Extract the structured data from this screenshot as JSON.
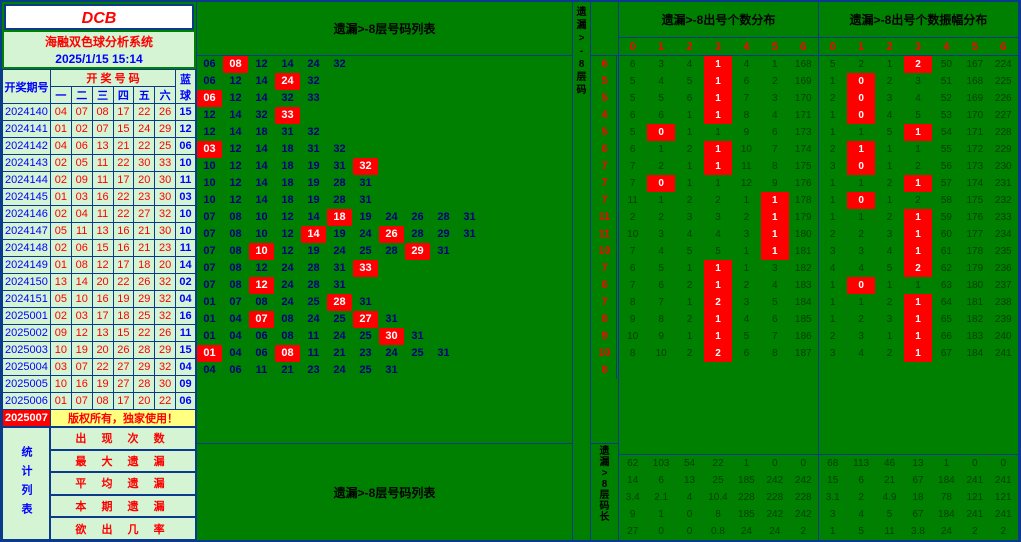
{
  "logo": "DCB",
  "subtitle": "海融双色球分析系统",
  "datetime": "2025/1/15 15:14",
  "hdr": {
    "period": "开奖期号",
    "nums": "开 奖 号 码",
    "blue": "蓝球",
    "n": [
      "一",
      "二",
      "三",
      "四",
      "五",
      "六"
    ]
  },
  "copyright": "版权所有，独家使用！",
  "stats_label": "统计列表",
  "stats_rows": [
    "出 现 次 数",
    "最 大 遗 漏",
    "平 均 遗 漏",
    "本 期 遗 漏",
    "欲 出 几 率"
  ],
  "mid_title": "遗漏>-8层号码列表",
  "mid_bottom": "遗漏>-8层号码列表",
  "v1": "遗漏>-8层码",
  "v2": "遗漏>8层码长",
  "p1_title": "遗漏>-8出号个数分布",
  "p2_title": "遗漏>-8出号个数振幅分布",
  "panel_hdr": [
    "0",
    "1",
    "2",
    "3",
    "4",
    "5",
    "6"
  ],
  "rows": [
    {
      "p": "2024140",
      "r": [
        "04",
        "07",
        "08",
        "17",
        "22",
        "26"
      ],
      "b": "15"
    },
    {
      "p": "2024141",
      "r": [
        "01",
        "02",
        "07",
        "15",
        "24",
        "29"
      ],
      "b": "12"
    },
    {
      "p": "2024142",
      "r": [
        "04",
        "06",
        "13",
        "21",
        "22",
        "25"
      ],
      "b": "06"
    },
    {
      "p": "2024143",
      "r": [
        "02",
        "05",
        "11",
        "22",
        "30",
        "33"
      ],
      "b": "10"
    },
    {
      "p": "2024144",
      "r": [
        "02",
        "09",
        "11",
        "17",
        "20",
        "30"
      ],
      "b": "11"
    },
    {
      "p": "2024145",
      "r": [
        "01",
        "03",
        "16",
        "22",
        "23",
        "30"
      ],
      "b": "03"
    },
    {
      "p": "2024146",
      "r": [
        "02",
        "04",
        "11",
        "22",
        "27",
        "32"
      ],
      "b": "10"
    },
    {
      "p": "2024147",
      "r": [
        "05",
        "11",
        "13",
        "16",
        "21",
        "30"
      ],
      "b": "10"
    },
    {
      "p": "2024148",
      "r": [
        "02",
        "06",
        "15",
        "16",
        "21",
        "23"
      ],
      "b": "11"
    },
    {
      "p": "2024149",
      "r": [
        "01",
        "08",
        "12",
        "17",
        "18",
        "20"
      ],
      "b": "14"
    },
    {
      "p": "2024150",
      "r": [
        "13",
        "14",
        "20",
        "22",
        "26",
        "32"
      ],
      "b": "02"
    },
    {
      "p": "2024151",
      "r": [
        "05",
        "10",
        "16",
        "19",
        "29",
        "32"
      ],
      "b": "04"
    },
    {
      "p": "2025001",
      "r": [
        "02",
        "03",
        "17",
        "18",
        "25",
        "32"
      ],
      "b": "16"
    },
    {
      "p": "2025002",
      "r": [
        "09",
        "12",
        "13",
        "15",
        "22",
        "26"
      ],
      "b": "11"
    },
    {
      "p": "2025003",
      "r": [
        "10",
        "19",
        "20",
        "26",
        "28",
        "29"
      ],
      "b": "15"
    },
    {
      "p": "2025004",
      "r": [
        "03",
        "07",
        "22",
        "27",
        "29",
        "32"
      ],
      "b": "04"
    },
    {
      "p": "2025005",
      "r": [
        "10",
        "16",
        "19",
        "27",
        "28",
        "30"
      ],
      "b": "09"
    },
    {
      "p": "2025006",
      "r": [
        "01",
        "07",
        "08",
        "17",
        "20",
        "22"
      ],
      "b": "06"
    }
  ],
  "cur_period": "2025007",
  "mid": [
    {
      "d": [
        "06",
        "08",
        "12",
        "14",
        "24",
        "32"
      ],
      "hl": [
        1
      ]
    },
    {
      "d": [
        "06",
        "12",
        "14",
        "24",
        "32"
      ],
      "hl": [
        3
      ]
    },
    {
      "d": [
        "06",
        "12",
        "14",
        "32",
        "33"
      ],
      "hl": [
        0
      ]
    },
    {
      "d": [
        "12",
        "14",
        "32",
        "33"
      ],
      "hl": [
        3
      ]
    },
    {
      "d": [
        "12",
        "14",
        "18",
        "31",
        "32"
      ],
      "hl": []
    },
    {
      "d": [
        "03",
        "12",
        "14",
        "18",
        "31",
        "32"
      ],
      "hl": [
        0
      ]
    },
    {
      "d": [
        "10",
        "12",
        "14",
        "18",
        "19",
        "31",
        "32"
      ],
      "hl": [
        6
      ]
    },
    {
      "d": [
        "10",
        "12",
        "14",
        "18",
        "19",
        "28",
        "31"
      ],
      "hl": []
    },
    {
      "d": [
        "10",
        "12",
        "14",
        "18",
        "19",
        "28",
        "31"
      ],
      "hl": []
    },
    {
      "d": [
        "07",
        "08",
        "10",
        "12",
        "14",
        "18",
        "19",
        "24",
        "26",
        "28",
        "31"
      ],
      "hl": [
        5
      ]
    },
    {
      "d": [
        "07",
        "08",
        "10",
        "12",
        "14",
        "19",
        "24",
        "26",
        "28",
        "29",
        "31"
      ],
      "hl": [
        4,
        7
      ]
    },
    {
      "d": [
        "07",
        "08",
        "10",
        "12",
        "19",
        "24",
        "25",
        "28",
        "29",
        "31"
      ],
      "hl": [
        2,
        8
      ]
    },
    {
      "d": [
        "07",
        "08",
        "12",
        "24",
        "28",
        "31",
        "33"
      ],
      "hl": [
        6
      ]
    },
    {
      "d": [
        "07",
        "08",
        "12",
        "24",
        "28",
        "31"
      ],
      "hl": [
        2
      ]
    },
    {
      "d": [
        "01",
        "07",
        "08",
        "24",
        "25",
        "28",
        "31"
      ],
      "hl": [
        5
      ]
    },
    {
      "d": [
        "01",
        "04",
        "07",
        "08",
        "24",
        "25",
        "27",
        "31"
      ],
      "hl": [
        2,
        6
      ]
    },
    {
      "d": [
        "01",
        "04",
        "06",
        "08",
        "11",
        "24",
        "25",
        "30",
        "31"
      ],
      "hl": [
        7
      ]
    },
    {
      "d": [
        "01",
        "04",
        "06",
        "08",
        "11",
        "21",
        "23",
        "24",
        "25",
        "31"
      ],
      "hl": [
        0,
        3
      ]
    },
    {
      "d": [
        "04",
        "06",
        "11",
        "21",
        "23",
        "24",
        "25",
        "31"
      ],
      "hl": []
    }
  ],
  "single_col": [
    "6",
    "5",
    "5",
    "4",
    "5",
    "6",
    "7",
    "7",
    "7",
    "11",
    "11",
    "10",
    "7",
    "6",
    "7",
    "8",
    "9",
    "10",
    "8"
  ],
  "p1": [
    [
      [
        "6",
        "3"
      ],
      [
        "4",
        "1",
        1
      ],
      [
        "4",
        "1"
      ],
      [
        "168"
      ],
      [
        "225"
      ],
      [
        "225"
      ]
    ],
    [
      [
        "5",
        "4"
      ],
      [
        "5",
        "1",
        1
      ],
      [
        "6",
        "2"
      ],
      [
        "169"
      ],
      [
        "226"
      ],
      [
        "226"
      ]
    ],
    [
      [
        "5",
        "5"
      ],
      [
        "6",
        "1",
        1
      ],
      [
        "7",
        "3"
      ],
      [
        "170"
      ],
      [
        "227"
      ],
      [
        "227"
      ]
    ],
    [
      [
        "6",
        "6"
      ],
      [
        "1",
        "1",
        1
      ],
      [
        "8",
        "4"
      ],
      [
        "171"
      ],
      [
        "228"
      ],
      [
        "228"
      ]
    ],
    [
      [
        "5",
        "0",
        1
      ],
      [
        "1",
        "1"
      ],
      [
        "9",
        "6"
      ],
      [
        "173"
      ],
      [
        "230"
      ],
      [
        "229"
      ]
    ],
    [
      [
        "6",
        "1"
      ],
      [
        "2",
        "1",
        1
      ],
      [
        "10",
        "7"
      ],
      [
        "174"
      ],
      [
        "231"
      ],
      [
        "230"
      ]
    ],
    [
      [
        "7",
        "2"
      ],
      [
        "1",
        "1",
        1
      ],
      [
        "11",
        "8"
      ],
      [
        "175"
      ],
      [
        "232"
      ],
      [
        "231"
      ]
    ],
    [
      [
        "7",
        "0",
        1
      ],
      [
        "1",
        "1"
      ],
      [
        "12",
        "9"
      ],
      [
        "176"
      ],
      [
        "233"
      ],
      [
        "232"
      ]
    ],
    [
      [
        "11",
        "1"
      ],
      [
        "2",
        "2"
      ],
      [
        "1",
        "1",
        1
      ],
      [
        "178"
      ],
      [
        "235"
      ],
      [
        "233"
      ]
    ],
    [
      [
        "2",
        "2"
      ],
      [
        "3",
        "3"
      ],
      [
        "2",
        "1",
        1
      ],
      [
        "179"
      ],
      [
        "236"
      ],
      [
        "234"
      ]
    ],
    [
      [
        "10",
        "3"
      ],
      [
        "4",
        "4"
      ],
      [
        "3",
        "1",
        1
      ],
      [
        "180"
      ],
      [
        "237"
      ],
      [
        "235"
      ]
    ],
    [
      [
        "7",
        "4"
      ],
      [
        "5",
        "5"
      ],
      [
        "1",
        "1",
        1
      ],
      [
        "181"
      ],
      [
        "238"
      ],
      [
        "236"
      ]
    ],
    [
      [
        "6",
        "5"
      ],
      [
        "1",
        "1",
        1
      ],
      [
        "1",
        "3"
      ],
      [
        "182"
      ],
      [
        "239"
      ],
      [
        "237"
      ]
    ],
    [
      [
        "7",
        "6"
      ],
      [
        "2",
        "1",
        1
      ],
      [
        "2",
        "4"
      ],
      [
        "183"
      ],
      [
        "240"
      ],
      [
        "238"
      ]
    ],
    [
      [
        "8",
        "7"
      ],
      [
        "1",
        "2",
        1
      ],
      [
        "3",
        "5"
      ],
      [
        "184"
      ],
      [
        "241"
      ],
      [
        "239"
      ]
    ],
    [
      [
        "9",
        "8"
      ],
      [
        "2",
        "1",
        1
      ],
      [
        "4",
        "6"
      ],
      [
        "185"
      ],
      [
        "242"
      ],
      [
        "240"
      ]
    ],
    [
      [
        "10",
        "9"
      ],
      [
        "1",
        "1",
        1
      ],
      [
        "5",
        "7"
      ],
      [
        "186"
      ],
      [
        "243"
      ],
      [
        "241"
      ]
    ],
    [
      [
        "8",
        "10"
      ],
      [
        "2",
        "2",
        1
      ],
      [
        "6",
        "8"
      ],
      [
        "187"
      ],
      [
        "244"
      ],
      [
        "242"
      ]
    ]
  ],
  "p2": [
    [
      [
        "5",
        "2"
      ],
      [
        "1",
        "2",
        1
      ],
      [
        "50"
      ],
      [
        "167"
      ],
      [
        "224"
      ],
      [
        "224"
      ]
    ],
    [
      [
        "1",
        "0",
        1
      ],
      [
        "2",
        "3"
      ],
      [
        "51"
      ],
      [
        "168"
      ],
      [
        "225"
      ],
      [
        "225"
      ]
    ],
    [
      [
        "2",
        "0",
        1
      ],
      [
        "3",
        "4"
      ],
      [
        "52"
      ],
      [
        "169"
      ],
      [
        "226"
      ],
      [
        "226"
      ]
    ],
    [
      [
        "1",
        "0",
        1
      ],
      [
        "4",
        "5"
      ],
      [
        "53"
      ],
      [
        "170"
      ],
      [
        "227"
      ],
      [
        "227"
      ]
    ],
    [
      [
        "1",
        "1"
      ],
      [
        "5",
        "1",
        1
      ],
      [
        "54"
      ],
      [
        "171"
      ],
      [
        "228"
      ],
      [
        "228"
      ]
    ],
    [
      [
        "2",
        "1",
        1
      ],
      [
        "1",
        "1"
      ],
      [
        "55"
      ],
      [
        "172"
      ],
      [
        "229"
      ],
      [
        "229"
      ]
    ],
    [
      [
        "3",
        "0",
        1
      ],
      [
        "1",
        "2"
      ],
      [
        "56"
      ],
      [
        "173"
      ],
      [
        "230"
      ],
      [
        "230"
      ]
    ],
    [
      [
        "1",
        "1"
      ],
      [
        "2",
        "1",
        1
      ],
      [
        "57"
      ],
      [
        "174"
      ],
      [
        "231"
      ],
      [
        "231"
      ]
    ],
    [
      [
        "1",
        "0",
        1
      ],
      [
        "1",
        "2"
      ],
      [
        "58"
      ],
      [
        "175"
      ],
      [
        "232"
      ],
      [
        "232"
      ]
    ],
    [
      [
        "1",
        "1"
      ],
      [
        "2",
        "1",
        1
      ],
      [
        "59"
      ],
      [
        "176"
      ],
      [
        "233"
      ],
      [
        "233"
      ]
    ],
    [
      [
        "2",
        "2"
      ],
      [
        "3",
        "1",
        1
      ],
      [
        "60"
      ],
      [
        "177"
      ],
      [
        "234"
      ],
      [
        "234"
      ]
    ],
    [
      [
        "3",
        "3"
      ],
      [
        "4",
        "1",
        1
      ],
      [
        "61"
      ],
      [
        "178"
      ],
      [
        "235"
      ],
      [
        "235"
      ]
    ],
    [
      [
        "4",
        "4"
      ],
      [
        "5",
        "2",
        1
      ],
      [
        "62"
      ],
      [
        "179"
      ],
      [
        "236"
      ],
      [
        "236"
      ]
    ],
    [
      [
        "1",
        "0",
        1
      ],
      [
        "1",
        "1"
      ],
      [
        "63"
      ],
      [
        "180"
      ],
      [
        "237"
      ],
      [
        "237"
      ]
    ],
    [
      [
        "1",
        "1"
      ],
      [
        "2",
        "1",
        1
      ],
      [
        "64"
      ],
      [
        "181"
      ],
      [
        "238"
      ],
      [
        "238"
      ]
    ],
    [
      [
        "1",
        "2"
      ],
      [
        "3",
        "1",
        1
      ],
      [
        "65"
      ],
      [
        "182"
      ],
      [
        "239"
      ],
      [
        "239"
      ]
    ],
    [
      [
        "2",
        "3"
      ],
      [
        "1",
        "1",
        1
      ],
      [
        "66"
      ],
      [
        "183"
      ],
      [
        "240"
      ],
      [
        "240"
      ]
    ],
    [
      [
        "3",
        "4"
      ],
      [
        "2",
        "1",
        1
      ],
      [
        "67"
      ],
      [
        "184"
      ],
      [
        "241"
      ],
      [
        "241"
      ]
    ]
  ],
  "p1_bottom": [
    [
      "62",
      "103",
      "54",
      "22",
      "1",
      "0",
      "0"
    ],
    [
      "14",
      "6",
      "13",
      "25",
      "185",
      "242",
      "242"
    ],
    [
      "3.4",
      "2.1",
      "4",
      "10.4",
      "228",
      "228",
      "228"
    ],
    [
      "9",
      "1",
      "0",
      "8",
      "185",
      "242",
      "242"
    ],
    [
      "27",
      "0",
      "0",
      "0.8",
      "24",
      "24",
      "2"
    ]
  ],
  "p2_bottom": [
    [
      "68",
      "113",
      "46",
      "13",
      "1",
      "0",
      "0"
    ],
    [
      "15",
      "6",
      "21",
      "67",
      "184",
      "241",
      "241"
    ],
    [
      "3.1",
      "2",
      "4.9",
      "18",
      "78",
      "121",
      "121"
    ],
    [
      "3",
      "4",
      "5",
      "67",
      "184",
      "241",
      "241"
    ],
    [
      "1",
      "5",
      "11",
      "3.8",
      "24",
      "2",
      "2"
    ]
  ]
}
